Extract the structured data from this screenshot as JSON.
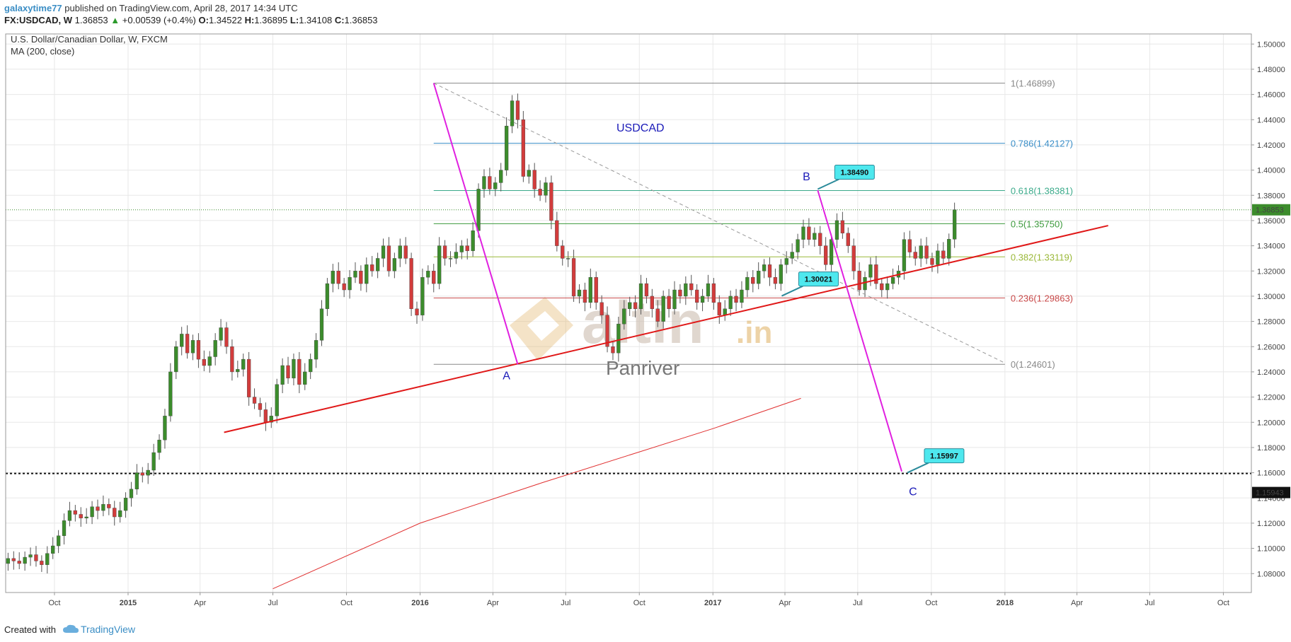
{
  "header": {
    "user": "galaxytime77",
    "published": " published on TradingView.com, April 28, 2017 14:34 UTC",
    "symbol": "FX:USDCAD, W",
    "last": "1.36853",
    "change": "+0.00539 (+0.4%)",
    "o_label": "O:",
    "o": "1.34522",
    "h_label": "H:",
    "h": "1.36895",
    "l_label": "L:",
    "l": "1.34108",
    "c_label": "C:",
    "c": "1.36853"
  },
  "footer": {
    "created": "Created with",
    "brand": "TradingView"
  },
  "chart_data": {
    "type": "candlestick",
    "title": "U.S. Dollar/Canadian Dollar, W, FXCM",
    "indicator_label": "MA (200, close)",
    "annotation_title": "USDCAD",
    "watermark": {
      "logo_text": "altin",
      "logo_suffix": ".in",
      "author": "Panriver"
    },
    "ylim": [
      1.065,
      1.508
    ],
    "y_ticks": [
      "1.08000",
      "1.10000",
      "1.12000",
      "1.14000",
      "1.16000",
      "1.18000",
      "1.20000",
      "1.22000",
      "1.24000",
      "1.26000",
      "1.28000",
      "1.30000",
      "1.32000",
      "1.34000",
      "1.36000",
      "1.38000",
      "1.40000",
      "1.42000",
      "1.44000",
      "1.46000",
      "1.48000",
      "1.50000"
    ],
    "y_tick_values": [
      1.08,
      1.1,
      1.12,
      1.14,
      1.16,
      1.18,
      1.2,
      1.22,
      1.24,
      1.26,
      1.28,
      1.3,
      1.32,
      1.34,
      1.36,
      1.38,
      1.4,
      1.42,
      1.44,
      1.46,
      1.48,
      1.5
    ],
    "x_range": [
      "2014-08-01",
      "2018-11-05"
    ],
    "x_ticks": [
      {
        "label": "Oct",
        "date": "2014-10-01",
        "bold": false
      },
      {
        "label": "2015",
        "date": "2015-01-01",
        "bold": true
      },
      {
        "label": "Apr",
        "date": "2015-04-01",
        "bold": false
      },
      {
        "label": "Jul",
        "date": "2015-07-01",
        "bold": false
      },
      {
        "label": "Oct",
        "date": "2015-10-01",
        "bold": false
      },
      {
        "label": "2016",
        "date": "2016-01-01",
        "bold": true
      },
      {
        "label": "Apr",
        "date": "2016-04-01",
        "bold": false
      },
      {
        "label": "Jul",
        "date": "2016-07-01",
        "bold": false
      },
      {
        "label": "Oct",
        "date": "2016-10-01",
        "bold": false
      },
      {
        "label": "2017",
        "date": "2017-01-01",
        "bold": true
      },
      {
        "label": "Apr",
        "date": "2017-04-01",
        "bold": false
      },
      {
        "label": "Jul",
        "date": "2017-07-01",
        "bold": false
      },
      {
        "label": "Oct",
        "date": "2017-10-01",
        "bold": false
      },
      {
        "label": "2018",
        "date": "2018-01-01",
        "bold": true
      },
      {
        "label": "Apr",
        "date": "2018-04-01",
        "bold": false
      },
      {
        "label": "Jul",
        "date": "2018-07-01",
        "bold": false
      },
      {
        "label": "Oct",
        "date": "2018-10-01",
        "bold": false
      }
    ],
    "candle_start": "2014-08-04",
    "candle_closes": [
      1.092,
      1.09,
      1.088,
      1.093,
      1.095,
      1.09,
      1.087,
      1.096,
      1.102,
      1.11,
      1.122,
      1.13,
      1.127,
      1.124,
      1.125,
      1.133,
      1.13,
      1.135,
      1.132,
      1.125,
      1.13,
      1.14,
      1.147,
      1.16,
      1.158,
      1.162,
      1.176,
      1.186,
      1.205,
      1.24,
      1.26,
      1.27,
      1.255,
      1.265,
      1.25,
      1.245,
      1.252,
      1.265,
      1.275,
      1.26,
      1.24,
      1.242,
      1.25,
      1.22,
      1.215,
      1.21,
      1.2,
      1.205,
      1.23,
      1.245,
      1.235,
      1.25,
      1.23,
      1.24,
      1.25,
      1.265,
      1.29,
      1.31,
      1.32,
      1.31,
      1.305,
      1.315,
      1.32,
      1.31,
      1.325,
      1.32,
      1.33,
      1.34,
      1.32,
      1.33,
      1.34,
      1.33,
      1.29,
      1.285,
      1.315,
      1.32,
      1.31,
      1.34,
      1.33,
      1.33,
      1.335,
      1.34,
      1.336,
      1.352,
      1.385,
      1.395,
      1.385,
      1.39,
      1.4,
      1.435,
      1.455,
      1.44,
      1.395,
      1.4,
      1.385,
      1.38,
      1.39,
      1.36,
      1.34,
      1.33,
      1.33,
      1.3,
      1.305,
      1.295,
      1.315,
      1.295,
      1.285,
      1.26,
      1.255,
      1.278,
      1.29,
      1.295,
      1.29,
      1.31,
      1.3,
      1.29,
      1.28,
      1.3,
      1.29,
      1.305,
      1.3,
      1.31,
      1.305,
      1.295,
      1.3,
      1.31,
      1.295,
      1.285,
      1.29,
      1.3,
      1.295,
      1.305,
      1.315,
      1.31,
      1.32,
      1.325,
      1.315,
      1.31,
      1.325,
      1.33,
      1.335,
      1.345,
      1.355,
      1.345,
      1.35,
      1.34,
      1.325,
      1.345,
      1.36,
      1.35,
      1.34,
      1.32,
      1.305,
      1.315,
      1.325,
      1.31,
      1.305,
      1.31,
      1.315,
      1.32,
      1.345,
      1.335,
      1.33,
      1.34,
      1.33,
      1.325,
      1.336,
      1.33,
      1.3452,
      1.3685
    ],
    "ma_label": "MA (200, close)",
    "ma_points": [
      {
        "x": "2015-07-01",
        "y": 1.068
      },
      {
        "x": "2016-01-01",
        "y": 1.12
      },
      {
        "x": "2016-06-01",
        "y": 1.152
      },
      {
        "x": "2017-01-01",
        "y": 1.195
      },
      {
        "x": "2017-04-21",
        "y": 1.219
      }
    ],
    "fib_levels": [
      {
        "ratio": "1",
        "value": 1.46899,
        "label": "1(1.46899)",
        "color": "#888888"
      },
      {
        "ratio": "0.786",
        "value": 1.42127,
        "label": "0.786(1.42127)",
        "color": "#3a8ec8"
      },
      {
        "ratio": "0.618",
        "value": 1.38381,
        "label": "0.618(1.38381)",
        "color": "#3aaa8a"
      },
      {
        "ratio": "0.5",
        "value": 1.3575,
        "label": "0.5(1.35750)",
        "color": "#3c9a3c"
      },
      {
        "ratio": "0.382",
        "value": 1.33119,
        "label": "0.382(1.33119)",
        "color": "#9ab838"
      },
      {
        "ratio": "0.236",
        "value": 1.29863,
        "label": "0.236(1.29863)",
        "color": "#c84848"
      },
      {
        "ratio": "0",
        "value": 1.24601,
        "label": "0(1.24601)",
        "color": "#888888"
      }
    ],
    "fib_start": "2016-01-18",
    "fib_end": "2018-01-01",
    "trendlines": [
      {
        "name": "support-trendline",
        "color": "#e01818",
        "from": {
          "x": "2015-05-01",
          "y": 1.192
        },
        "to": {
          "x": "2018-05-10",
          "y": 1.356
        }
      },
      {
        "name": "descending-dashed-line",
        "color": "#999999",
        "dashed": true,
        "from": {
          "x": "2016-01-18",
          "y": 1.46899
        },
        "to": {
          "x": "2018-01-01",
          "y": 1.247
        }
      },
      {
        "name": "wave-a-line",
        "color": "#e020e0",
        "from": {
          "x": "2016-01-18",
          "y": 1.469
        },
        "to": {
          "x": "2016-05-02",
          "y": 1.246
        }
      },
      {
        "name": "wave-bc-line",
        "color": "#e020e0",
        "from": {
          "x": "2017-05-12",
          "y": 1.384
        },
        "to": {
          "x": "2017-08-25",
          "y": 1.161
        }
      }
    ],
    "hline_dotted": {
      "value": 1.15943,
      "label": "1.15943"
    },
    "last_price": {
      "value": 1.36853,
      "label": "1.36853"
    },
    "callouts": [
      {
        "label": "1.38490",
        "x": "2017-05-12",
        "y": 1.3849
      },
      {
        "label": "1.30021",
        "x": "2017-03-28",
        "y": 1.3002
      },
      {
        "label": "1.15997",
        "x": "2017-09-01",
        "y": 1.16
      }
    ],
    "wave_labels": [
      {
        "label": "A",
        "x": "2016-04-18",
        "y": 1.234
      },
      {
        "label": "B",
        "x": "2017-04-28",
        "y": 1.392
      },
      {
        "label": "C",
        "x": "2017-09-08",
        "y": 1.142
      }
    ],
    "colors": {
      "up": "#3c8c2c",
      "down": "#d23c3c",
      "grid": "#e8e8e8",
      "axis": "#999999"
    }
  }
}
